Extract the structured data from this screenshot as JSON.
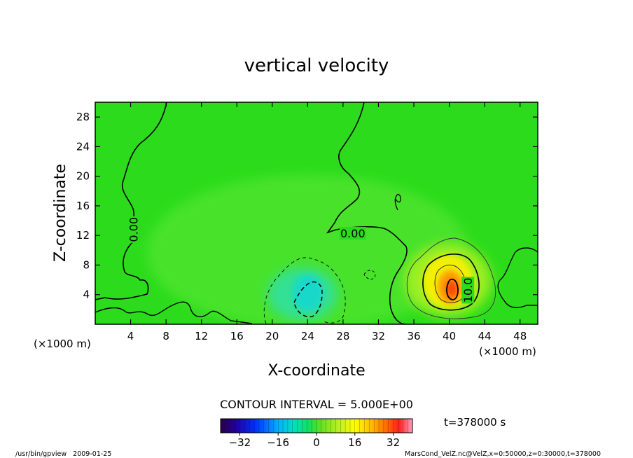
{
  "chart_data": {
    "type": "heatmap",
    "title": "vertical velocity",
    "xlabel": "X-coordinate",
    "ylabel": "Z-coordinate",
    "x_unit": "(×1000 m)",
    "y_unit": "(×1000 m)",
    "xlim": [
      0,
      50
    ],
    "ylim": [
      0,
      30
    ],
    "x_ticks": [
      4,
      8,
      12,
      16,
      20,
      24,
      28,
      32,
      36,
      40,
      44,
      48
    ],
    "y_ticks": [
      4,
      8,
      12,
      16,
      20,
      24,
      28
    ],
    "contour_interval_label": "CONTOUR INTERVAL = 5.000E+00",
    "contour_labels": [
      {
        "text": "0.00",
        "x": 4.3,
        "y": 12.8,
        "rotate": -90
      },
      {
        "text": "0.00",
        "x": 29.1,
        "y": 12.3,
        "rotate": 0
      },
      {
        "text": "10.0",
        "x": 42.1,
        "y": 4.6,
        "rotate": -90
      }
    ],
    "features": [
      {
        "name": "updraft",
        "x": 40.2,
        "z": 5.0,
        "peak": 30
      },
      {
        "name": "downdraft",
        "x": 24.3,
        "z": 4.8,
        "peak": -12
      }
    ],
    "colorbar": {
      "range": [
        -40,
        40
      ],
      "tick_labels": [
        "−32",
        "−16",
        "0",
        "16",
        "32"
      ],
      "tick_values": [
        -32,
        -16,
        0,
        16,
        32
      ]
    },
    "time_label": "t=378000 s"
  },
  "footer": {
    "left": "/usr/bin/gpview   2009-01-25",
    "right": "MarsCond_VelZ.nc@VelZ,x=0:50000,z=0:30000,t=378000"
  }
}
